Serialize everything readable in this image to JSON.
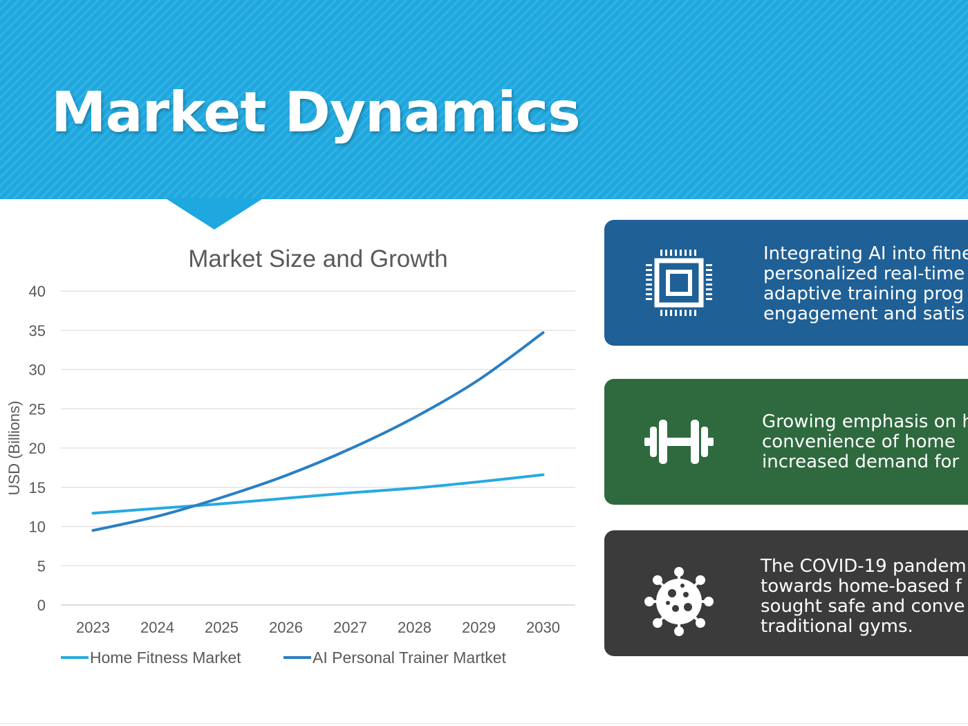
{
  "slide": {
    "title": "Market Dynamics",
    "banner_color": "#1ea8df"
  },
  "chart_data": {
    "type": "line",
    "title": "Market Size and Growth",
    "xlabel": "",
    "ylabel": "USD (Billions)",
    "categories": [
      "2023",
      "2024",
      "2025",
      "2026",
      "2027",
      "2028",
      "2029",
      "2030"
    ],
    "ylim": [
      0,
      40
    ],
    "yticks": [
      "0",
      "5",
      "10",
      "15",
      "20",
      "25",
      "30",
      "35",
      "40"
    ],
    "grid": true,
    "legend_position": "bottom",
    "series": [
      {
        "name": "Home Fitness Market",
        "color": "#27a9e1",
        "values": [
          11.7,
          12.3,
          12.9,
          13.6,
          14.3,
          14.9,
          15.7,
          16.6
        ]
      },
      {
        "name": "AI Personal Trainer Martket",
        "color": "#2a7fc4",
        "values": [
          9.5,
          11.3,
          13.7,
          16.5,
          19.9,
          23.9,
          28.7,
          34.7
        ]
      }
    ]
  },
  "cards": [
    {
      "text": "Integrating AI into fitne\npersonalized real-time\nadaptive training prog\nengagement and satis",
      "icon": "chip-icon",
      "color": "#1f6096"
    },
    {
      "text": "Growing emphasis on h\nconvenience of home\nincreased demand for",
      "icon": "dumbbell-icon",
      "color": "#2e6a3e"
    },
    {
      "text": "The COVID-19 pandem\ntowards home-based f\nsought safe and conve\ntraditional gyms.",
      "icon": "virus-icon",
      "color": "#3b3b3b"
    }
  ]
}
